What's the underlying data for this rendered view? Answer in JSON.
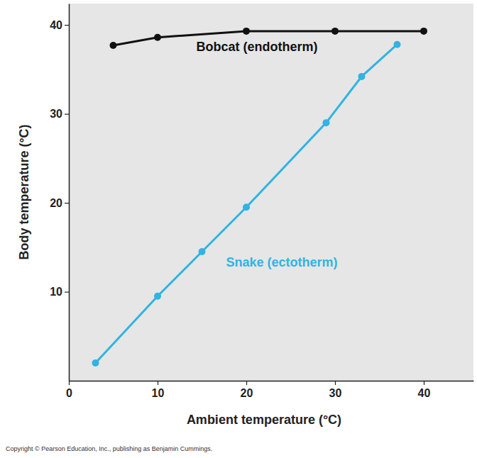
{
  "chart_data": {
    "type": "line",
    "x_label": "Ambient temperature (°C)",
    "y_label": "Body temperature (°C)",
    "annotations": [
      "Copyright © Pearson Education, Inc., publishing as Benjamin Cummings."
    ],
    "series": [
      {
        "name": "Bobcat (endotherm)",
        "color": "#111111",
        "marker": "circle",
        "line_style": "solid",
        "x": [
          5,
          10,
          20,
          30,
          40
        ],
        "values": [
          37.7,
          38.6,
          39.3,
          39.3,
          39.3
        ]
      },
      {
        "name": "Snake (ectotherm)",
        "color": "#2fb4e4",
        "marker": "circle",
        "line_style": "solid",
        "x": [
          3,
          10,
          15,
          20,
          29,
          33,
          37
        ],
        "values": [
          2.0,
          9.5,
          14.5,
          19.5,
          29,
          34.2,
          37.8
        ]
      }
    ],
    "xlim": [
      0,
      45.6
    ],
    "xticks": [
      0,
      10,
      20,
      30,
      40
    ],
    "ylim": [
      0,
      42.4
    ],
    "yticks": [
      10,
      20,
      30,
      40
    ],
    "grid": false
  }
}
